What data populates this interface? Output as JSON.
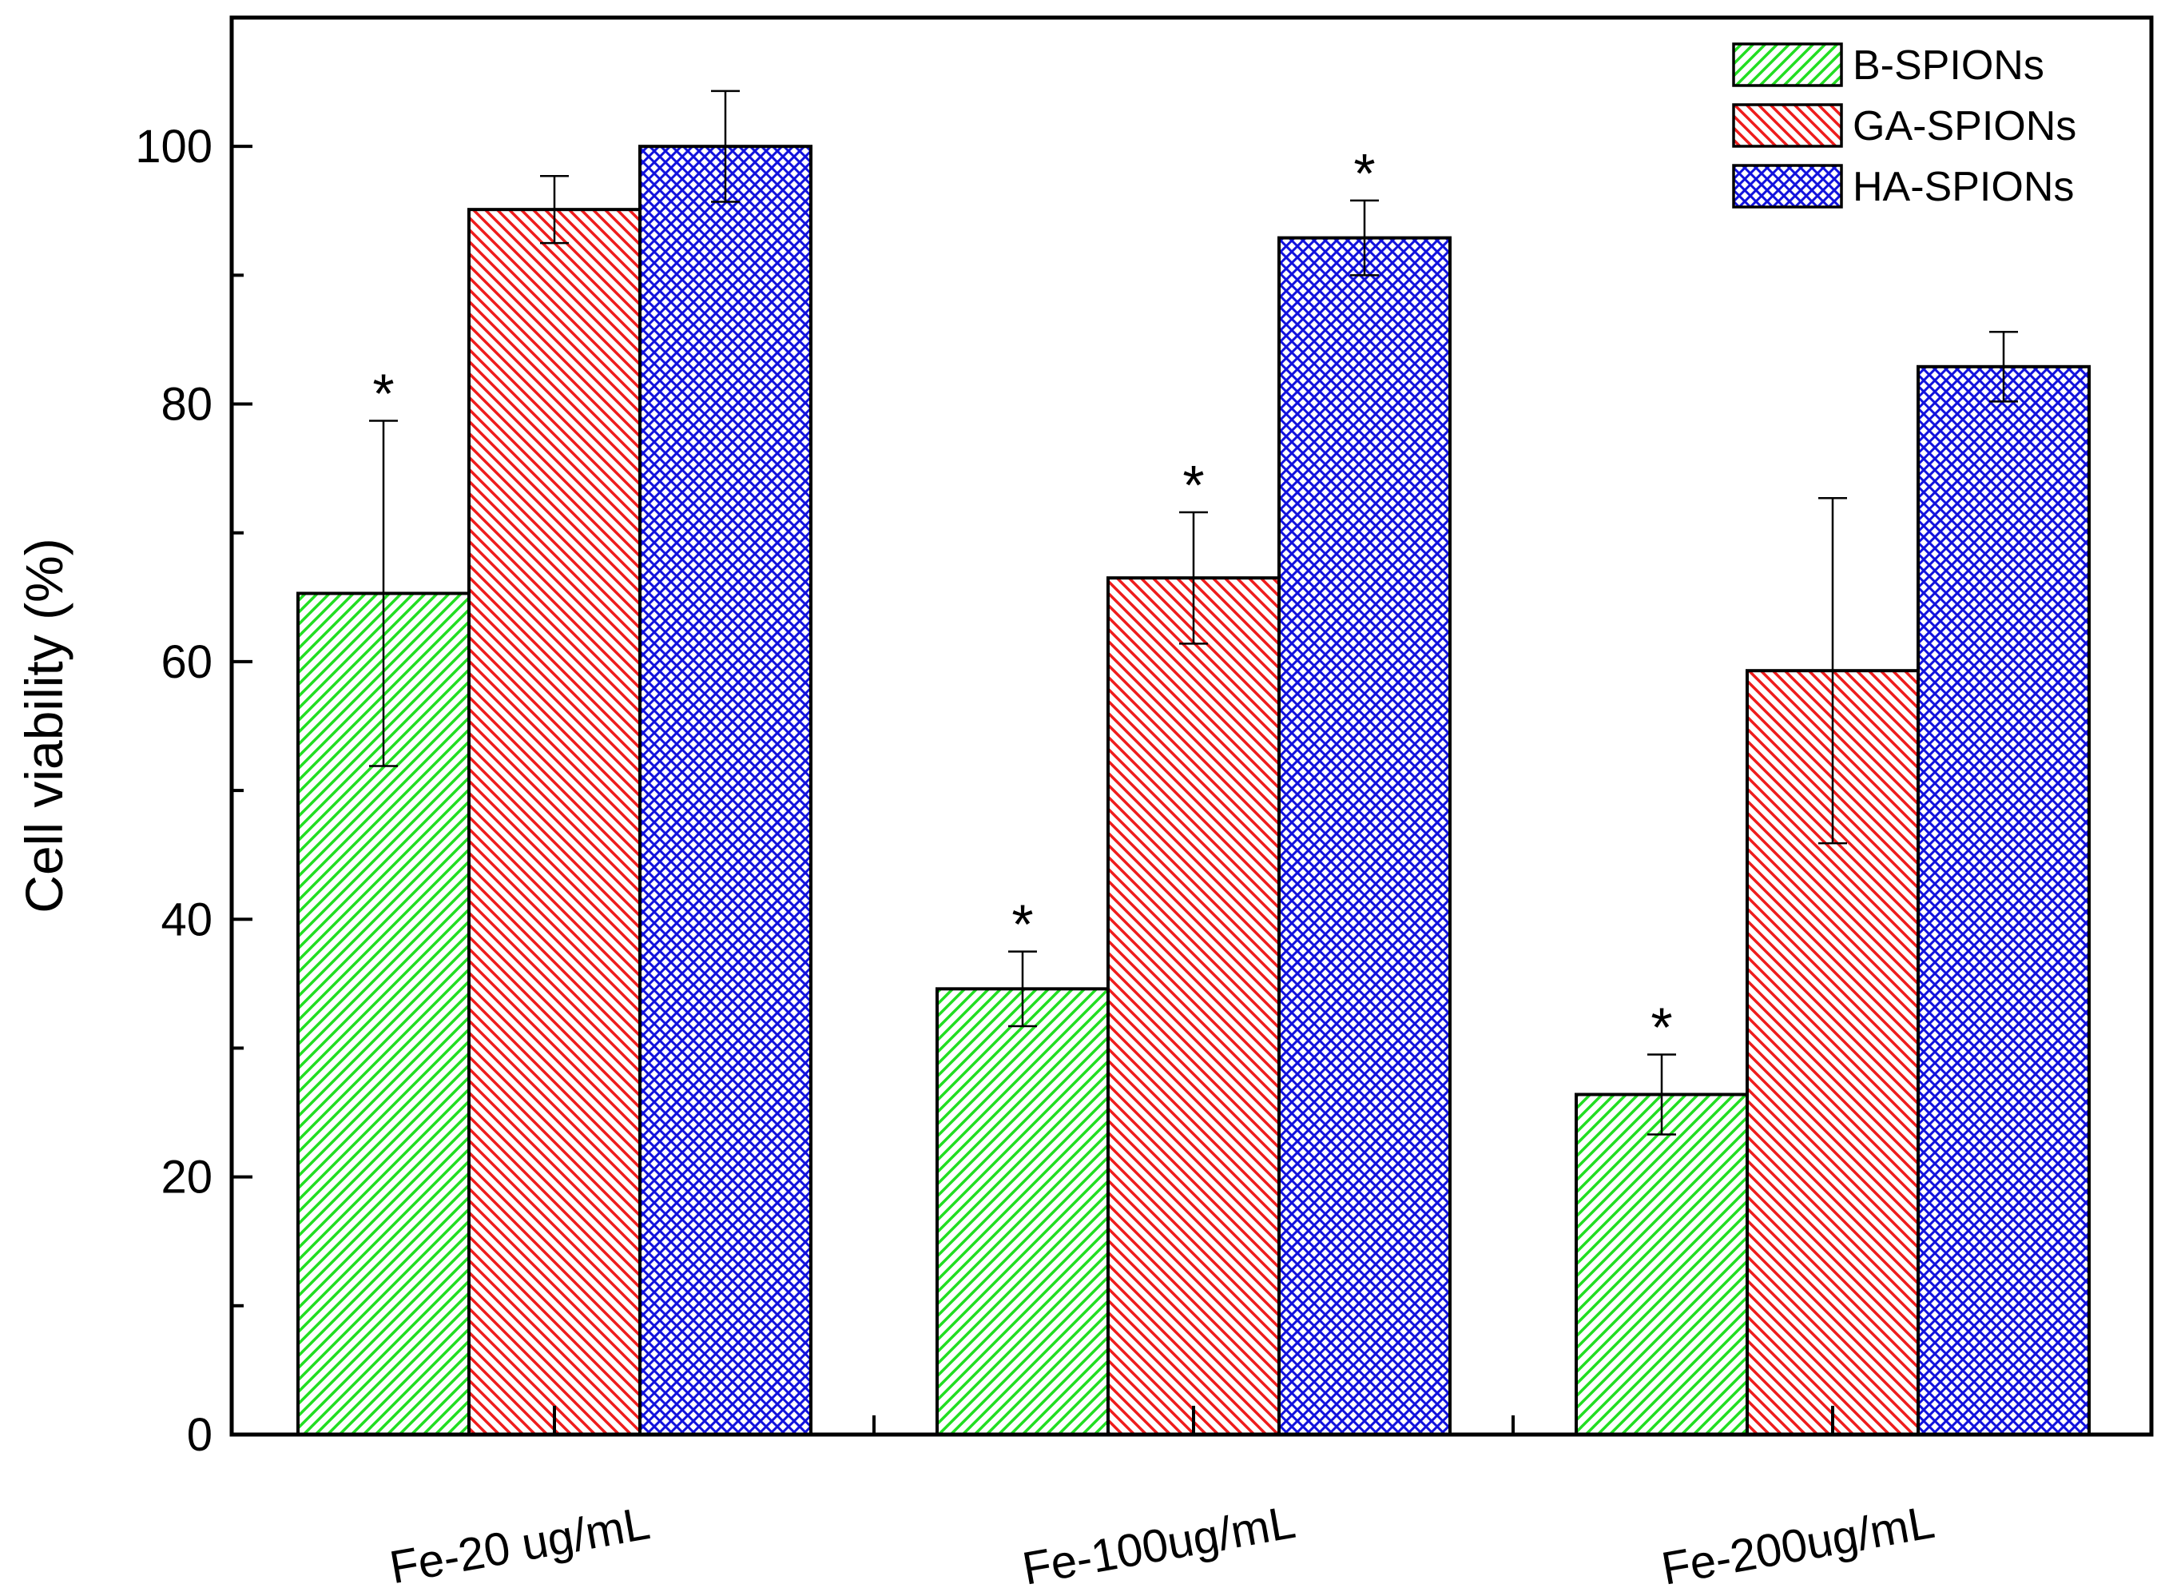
{
  "chart_data": {
    "type": "bar",
    "title": "",
    "xlabel": "",
    "ylabel": "Cell viability (%)",
    "ylim": [
      0,
      110
    ],
    "yticks": [
      0,
      20,
      40,
      60,
      80,
      100
    ],
    "categories": [
      "Fe-20 ug/mL",
      "Fe-100ug/mL",
      "Fe-200ug/mL"
    ],
    "series": [
      {
        "name": "B-SPIONs",
        "color": "#22dd22",
        "pattern": "diagonal-right",
        "values": [
          65.3,
          34.6,
          26.4
        ],
        "errors": [
          13.4,
          2.9,
          3.1
        ],
        "significance": [
          "*",
          "*",
          "*"
        ]
      },
      {
        "name": "GA-SPIONs",
        "color": "#ee1c1c",
        "pattern": "diagonal-left",
        "values": [
          95.1,
          66.5,
          59.3
        ],
        "errors": [
          2.6,
          5.1,
          13.4
        ],
        "significance": [
          "",
          "*",
          ""
        ]
      },
      {
        "name": "HA-SPIONs",
        "color": "#1111dd",
        "pattern": "crosshatch",
        "values": [
          100.0,
          92.9,
          82.9
        ],
        "errors": [
          4.3,
          2.9,
          2.7
        ],
        "significance": [
          "",
          "*",
          ""
        ]
      }
    ],
    "legend_position": "top-right",
    "grid": false
  }
}
